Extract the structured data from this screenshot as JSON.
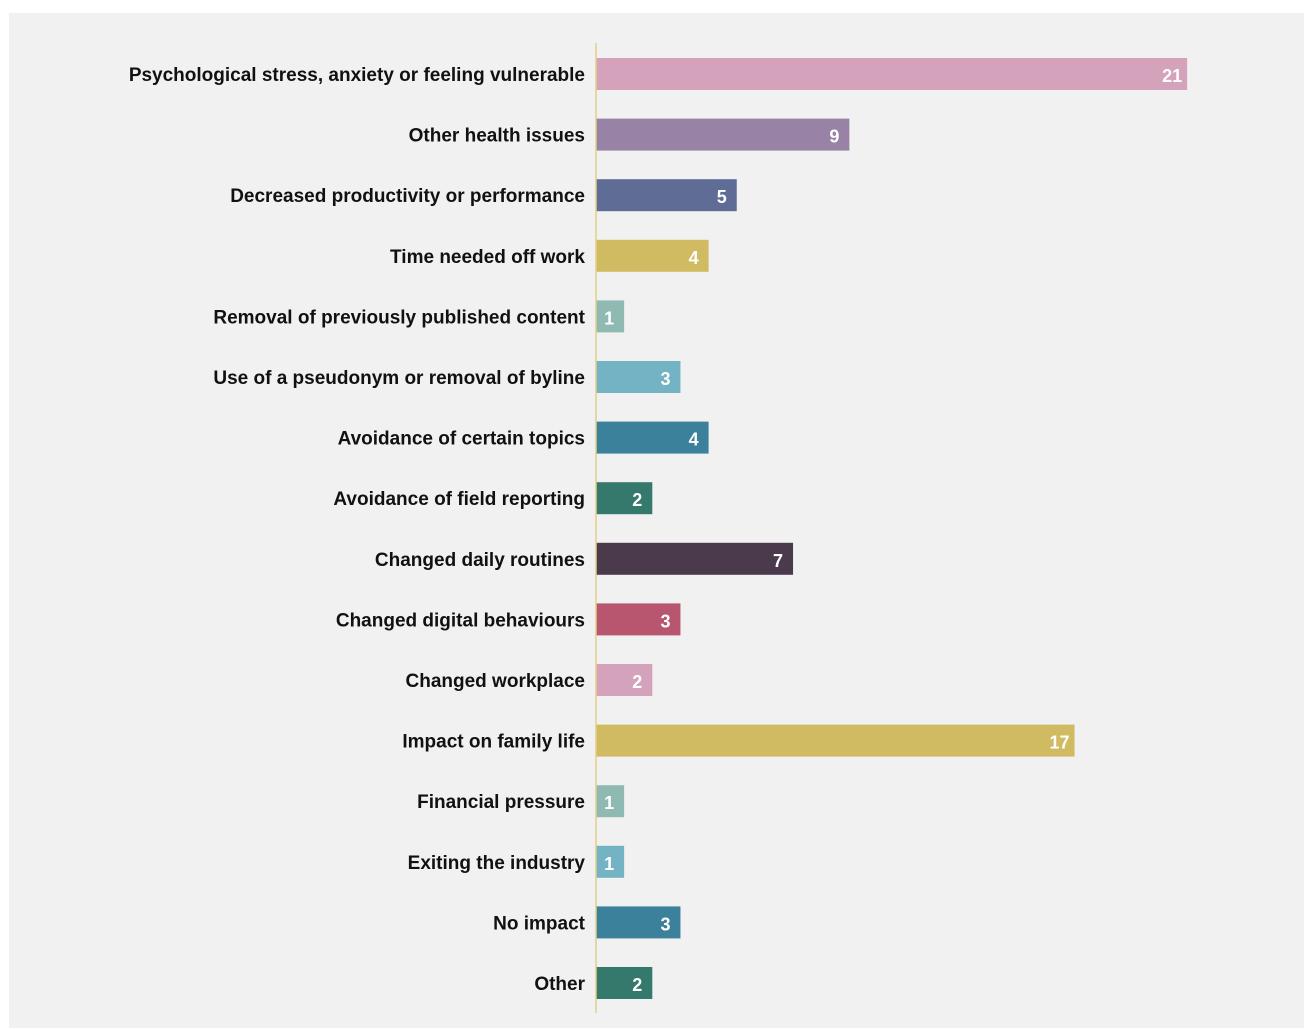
{
  "chart_data": {
    "type": "bar",
    "orientation": "horizontal",
    "title": "",
    "xlabel": "",
    "ylabel": "",
    "xlim": [
      0,
      21
    ],
    "grid": false,
    "legend": "none",
    "categories": [
      "Psychological stress, anxiety or feeling vulnerable",
      "Other health issues",
      "Decreased productivity or performance",
      "Time needed off work",
      "Removal of previously published content",
      "Use of a pseudonym or removal of byline",
      "Avoidance of certain topics",
      "Avoidance of field reporting",
      "Changed daily routines",
      "Changed digital behaviours",
      "Changed workplace",
      "Impact on family life",
      "Financial pressure",
      "Exiting the industry",
      "No impact",
      "Other"
    ],
    "values": [
      21,
      9,
      5,
      4,
      1,
      3,
      4,
      2,
      7,
      3,
      2,
      17,
      1,
      1,
      3,
      2
    ],
    "colors": [
      "#d5a2bc",
      "#9882a5",
      "#5f6c96",
      "#d0bb62",
      "#8fbab3",
      "#73b3c4",
      "#3b819b",
      "#35786c",
      "#4a3a4c",
      "#b9566f",
      "#d5a2bc",
      "#d0bb62",
      "#8fbab3",
      "#73b3c4",
      "#3b819b",
      "#35786c"
    ],
    "axis_color": "#e3cf85"
  }
}
